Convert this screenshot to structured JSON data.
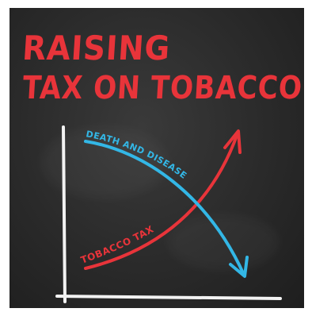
{
  "headline": {
    "line1": "RAISING",
    "line2": "TAX ON TOBACCO"
  },
  "chart": {
    "curve_decreasing_label": "DEATH AND DISEASE",
    "curve_increasing_label": "TOBACCO TAX"
  },
  "colors": {
    "board": "#2a2a2a",
    "title": "#e8343a",
    "decreasing_curve": "#33b7e6",
    "increasing_curve": "#e8343a",
    "axes": "#f2f2f2"
  }
}
